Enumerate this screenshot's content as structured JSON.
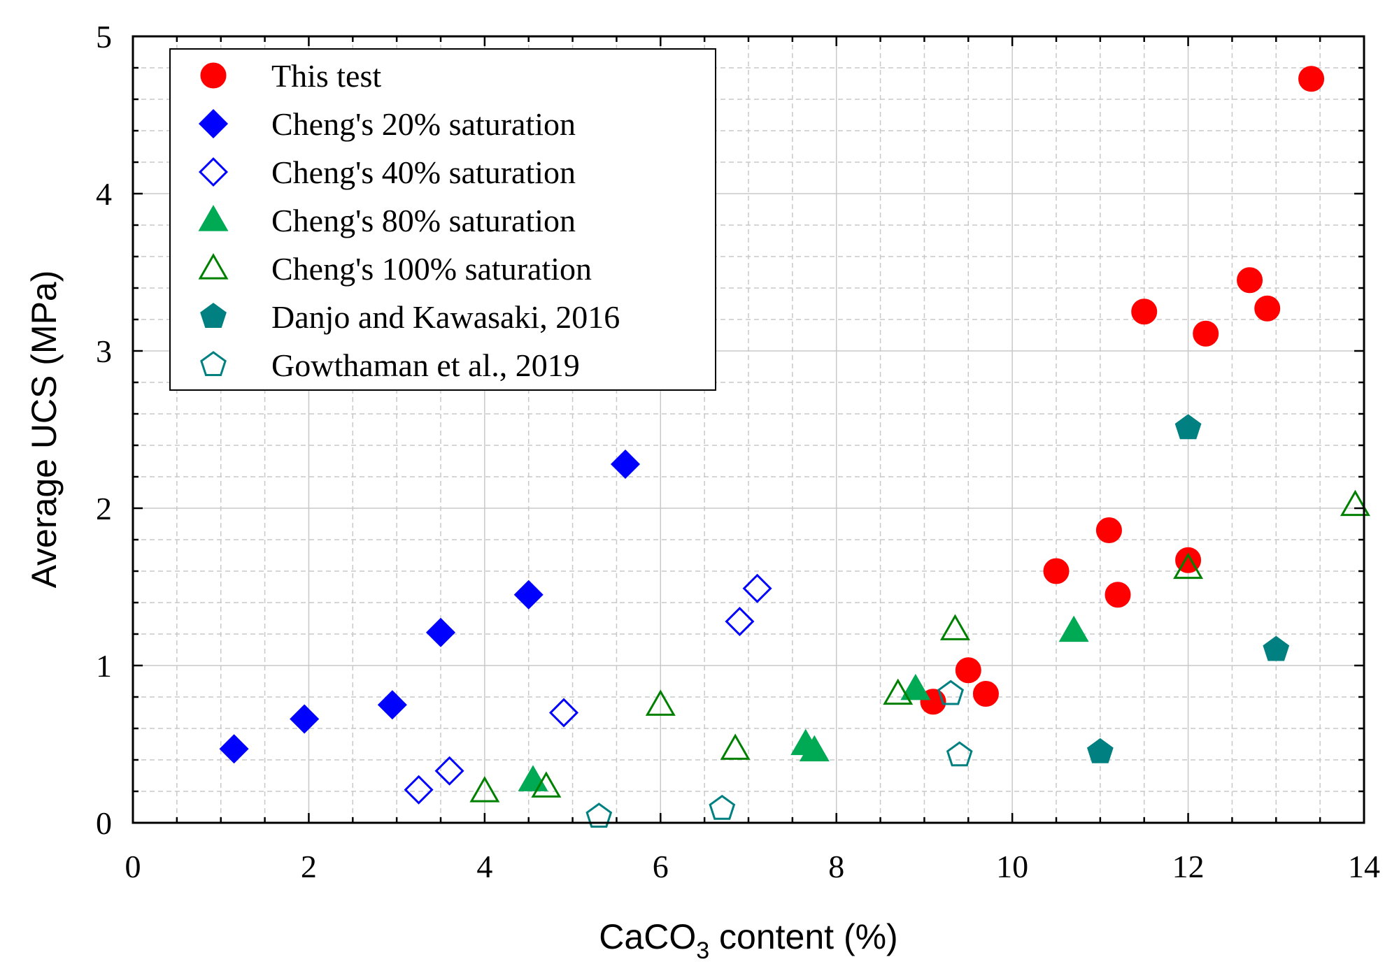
{
  "chart_data": {
    "type": "scatter",
    "xlabel": "CaCO3 content (%)",
    "xlabel_parts": {
      "pre": "CaCO",
      "sub": "3",
      "post": " content (%)"
    },
    "ylabel": "Average UCS (MPa)",
    "xlim": [
      0,
      14
    ],
    "ylim": [
      0,
      5
    ],
    "xticks": [
      0,
      2,
      4,
      6,
      8,
      10,
      12,
      14
    ],
    "yticks": [
      0,
      1,
      2,
      3,
      4,
      5
    ],
    "grid": true,
    "legend_position": "top-left",
    "series": [
      {
        "name": "This test",
        "marker": "circle",
        "filled": true,
        "color": "#ff0000",
        "points": [
          [
            9.1,
            0.77
          ],
          [
            9.5,
            0.97
          ],
          [
            9.7,
            0.82
          ],
          [
            10.5,
            1.6
          ],
          [
            11.1,
            1.86
          ],
          [
            11.2,
            1.45
          ],
          [
            11.5,
            3.25
          ],
          [
            12.0,
            1.67
          ],
          [
            12.2,
            3.11
          ],
          [
            12.7,
            3.45
          ],
          [
            12.9,
            3.27
          ],
          [
            13.4,
            4.73
          ]
        ]
      },
      {
        "name": "Cheng's 20% saturation",
        "marker": "diamond",
        "filled": true,
        "color": "#0000ff",
        "points": [
          [
            1.15,
            0.47
          ],
          [
            1.95,
            0.66
          ],
          [
            2.95,
            0.75
          ],
          [
            3.5,
            1.21
          ],
          [
            4.5,
            1.45
          ],
          [
            5.6,
            2.28
          ]
        ]
      },
      {
        "name": "Cheng's 40% saturation",
        "marker": "diamond",
        "filled": false,
        "color": "#0000ff",
        "points": [
          [
            3.25,
            0.21
          ],
          [
            3.6,
            0.33
          ],
          [
            4.9,
            0.7
          ],
          [
            6.9,
            1.28
          ],
          [
            7.1,
            1.49
          ]
        ]
      },
      {
        "name": "Cheng's 80% saturation",
        "marker": "triangle",
        "filled": true,
        "color": "#00aa55",
        "points": [
          [
            4.55,
            0.27
          ],
          [
            7.65,
            0.5
          ],
          [
            7.75,
            0.46
          ],
          [
            8.9,
            0.85
          ],
          [
            10.7,
            1.22
          ]
        ]
      },
      {
        "name": "Cheng's 100% saturation",
        "marker": "triangle",
        "filled": false,
        "color": "#008000",
        "points": [
          [
            4.0,
            0.2
          ],
          [
            4.7,
            0.23
          ],
          [
            6.0,
            0.75
          ],
          [
            6.85,
            0.47
          ],
          [
            8.7,
            0.82
          ],
          [
            9.35,
            1.23
          ],
          [
            12.0,
            1.62
          ],
          [
            13.9,
            2.02
          ]
        ]
      },
      {
        "name": "Danjo and Kawasaki, 2016",
        "marker": "pentagon",
        "filled": true,
        "color": "#008080",
        "points": [
          [
            11.0,
            0.45
          ],
          [
            12.0,
            2.51
          ],
          [
            13.0,
            1.1
          ]
        ]
      },
      {
        "name": "Gowthaman et al., 2019",
        "marker": "pentagon",
        "filled": false,
        "color": "#008080",
        "points": [
          [
            5.3,
            0.04
          ],
          [
            6.7,
            0.09
          ],
          [
            9.3,
            0.82
          ],
          [
            9.4,
            0.43
          ]
        ]
      }
    ]
  }
}
